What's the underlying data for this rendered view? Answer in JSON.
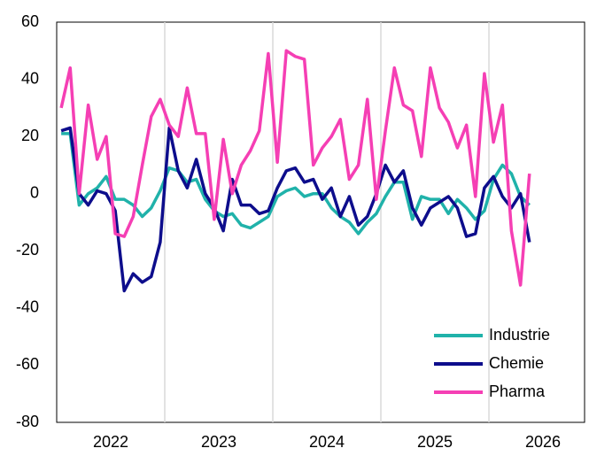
{
  "chart_data": {
    "type": "line",
    "x": [
      2022.042,
      2022.125,
      2022.208,
      2022.292,
      2022.375,
      2022.458,
      2022.542,
      2022.625,
      2022.708,
      2022.792,
      2022.875,
      2022.958,
      2023.042,
      2023.125,
      2023.208,
      2023.292,
      2023.375,
      2023.458,
      2023.542,
      2023.625,
      2023.708,
      2023.792,
      2023.875,
      2023.958,
      2024.042,
      2024.125,
      2024.208,
      2024.292,
      2024.375,
      2024.458,
      2024.542,
      2024.625,
      2024.708,
      2024.792,
      2024.875,
      2024.958,
      2025.042,
      2025.125,
      2025.208,
      2025.292,
      2025.375,
      2025.458,
      2025.542,
      2025.625,
      2025.708,
      2025.792,
      2025.875,
      2025.958,
      2026.042,
      2026.125,
      2026.208,
      2026.292,
      2026.375
    ],
    "series": [
      {
        "name": "Industrie",
        "color": "#20b2aa",
        "values": [
          21,
          21,
          -4,
          0,
          2,
          6,
          -2,
          -2,
          -4,
          -8,
          -5,
          1,
          9,
          8,
          4,
          5,
          -2,
          -6,
          -8,
          -7,
          -11,
          -12,
          -10,
          -8,
          -1,
          1,
          2,
          -1,
          0,
          0,
          -5,
          -8,
          -10,
          -14,
          -10,
          -7,
          -1,
          4,
          4,
          -9,
          -1,
          -2,
          -2,
          -7,
          -2,
          -5,
          -9,
          -6,
          5,
          10,
          7,
          -1,
          -4
        ]
      },
      {
        "name": "Chemie",
        "color": "#0d0d8c",
        "values": [
          22,
          23,
          0,
          -4,
          1,
          0,
          -6,
          -34,
          -28,
          -31,
          -29,
          -17,
          23,
          8,
          2,
          12,
          0,
          -5,
          -13,
          5,
          -4,
          -4,
          -7,
          -6,
          2,
          8,
          9,
          4,
          5,
          -2,
          2,
          -8,
          -1,
          -11,
          -8,
          0,
          10,
          4,
          8,
          -5,
          -11,
          -5,
          -3,
          -1,
          -5,
          -15,
          -14,
          2,
          6,
          -1,
          -5,
          0,
          -17
        ]
      },
      {
        "name": "Pharma",
        "color": "#f53fb4",
        "values": [
          30,
          44,
          0,
          31,
          12,
          20,
          -14,
          -15,
          -8,
          10,
          27,
          33,
          24,
          20,
          37,
          21,
          21,
          -9,
          19,
          0,
          10,
          15,
          22,
          49,
          11,
          50,
          48,
          47,
          10,
          16,
          20,
          26,
          5,
          10,
          33,
          -2,
          22,
          44,
          31,
          29,
          13,
          44,
          30,
          25,
          16,
          24,
          -1,
          42,
          18,
          31,
          -13,
          -32,
          7
        ]
      }
    ],
    "xlim": [
      2022,
      2026.885
    ],
    "xticks": [
      {
        "value": 2022.5,
        "label": "2022"
      },
      {
        "value": 2023.5,
        "label": "2023"
      },
      {
        "value": 2024.5,
        "label": "2024"
      },
      {
        "value": 2025.5,
        "label": "2025"
      },
      {
        "value": 2026.5,
        "label": "2026"
      }
    ],
    "xgrid": [
      2023,
      2024,
      2025,
      2026
    ],
    "ylim": [
      -80,
      60
    ],
    "yticks": [
      -80,
      -60,
      -40,
      -20,
      0,
      20,
      40,
      60
    ],
    "legend": "lower right"
  }
}
